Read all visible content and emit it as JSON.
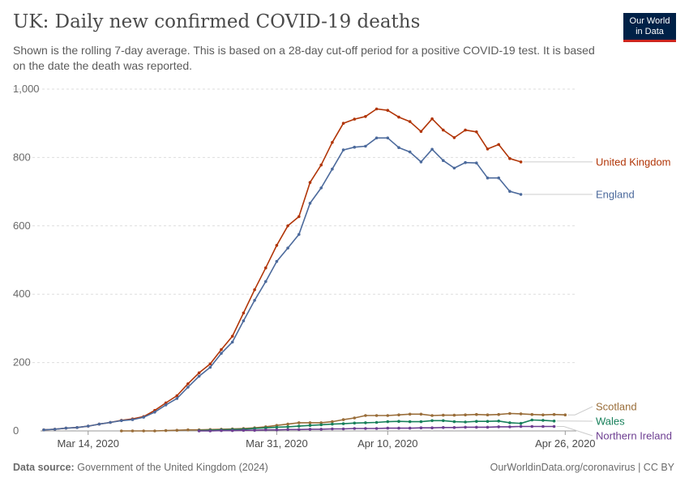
{
  "header": {
    "title": "UK: Daily new confirmed COVID-19 deaths",
    "subtitle": "Shown is the rolling 7-day average. This is based on a 28-day cut-off period for a positive COVID-19 test. It is based on the date the death was reported."
  },
  "logo": {
    "line1": "Our World",
    "line2": "in Data",
    "bg_color": "#002147",
    "accent_color": "#ce261e"
  },
  "footer": {
    "source_label": "Data source:",
    "source_text": "Government of the United Kingdom (2024)",
    "link_text": "OurWorldinData.org/coronavirus | CC BY"
  },
  "chart_data": {
    "type": "line",
    "x_start": "2020-03-10",
    "x_end": "2020-04-27",
    "xlim": [
      "2020-03-10",
      "2020-04-27"
    ],
    "x_ticks": [
      {
        "label": "Mar 14, 2020",
        "date": "2020-03-14"
      },
      {
        "label": "Mar 31, 2020",
        "date": "2020-03-31"
      },
      {
        "label": "Apr 10, 2020",
        "date": "2020-04-10"
      },
      {
        "label": "Apr 26, 2020",
        "date": "2020-04-26"
      }
    ],
    "ylim": [
      0,
      1000
    ],
    "y_ticks": [
      {
        "label": "0",
        "value": 0
      },
      {
        "label": "200",
        "value": 200
      },
      {
        "label": "400",
        "value": 400
      },
      {
        "label": "600",
        "value": 600
      },
      {
        "label": "800",
        "value": 800
      },
      {
        "label": "1,000",
        "value": 1000
      }
    ],
    "grid": "horizontal-dashed",
    "legend": "right",
    "series": [
      {
        "name": "United Kingdom",
        "color": "#b13507",
        "start": "2020-03-10",
        "values": [
          3,
          5,
          8,
          10,
          14,
          20,
          25,
          31,
          35,
          42,
          60,
          82,
          103,
          138,
          170,
          196,
          238,
          277,
          345,
          413,
          477,
          543,
          600,
          627,
          727,
          778,
          844,
          900,
          912,
          920,
          942,
          938,
          918,
          905,
          876,
          913,
          880,
          858,
          880,
          875,
          825,
          838,
          797,
          787
        ]
      },
      {
        "name": "England",
        "color": "#4c6a9c",
        "start": "2020-03-10",
        "values": [
          3,
          5,
          8,
          10,
          14,
          20,
          25,
          30,
          33,
          40,
          55,
          76,
          95,
          128,
          160,
          186,
          227,
          260,
          322,
          382,
          437,
          496,
          535,
          575,
          666,
          711,
          766,
          822,
          830,
          833,
          857,
          857,
          829,
          816,
          787,
          824,
          791,
          769,
          785,
          784,
          740,
          740,
          701,
          692
        ]
      },
      {
        "name": "Scotland",
        "color": "#996d39",
        "start": "2020-03-17",
        "values": [
          0,
          0,
          0,
          0,
          1,
          2,
          3,
          3,
          4,
          5,
          6,
          7,
          9,
          12,
          16,
          20,
          24,
          24,
          24,
          27,
          33,
          38,
          45,
          45,
          45,
          47,
          49,
          49,
          45,
          46,
          46,
          47,
          48,
          47,
          48,
          51,
          50,
          48,
          47,
          48,
          47
        ]
      },
      {
        "name": "Wales",
        "color": "#18805b",
        "start": "2020-03-24",
        "values": [
          1,
          2,
          3,
          4,
          5,
          7,
          9,
          11,
          12,
          14,
          16,
          18,
          20,
          21,
          23,
          24,
          25,
          27,
          28,
          27,
          27,
          30,
          30,
          27,
          26,
          28,
          28,
          29,
          24,
          22,
          32,
          31,
          29
        ]
      },
      {
        "name": "Northern Ireland",
        "color": "#6d3e91",
        "start": "2020-03-24",
        "values": [
          0,
          0,
          1,
          1,
          2,
          2,
          3,
          3,
          4,
          4,
          5,
          5,
          6,
          6,
          7,
          7,
          7,
          8,
          8,
          8,
          9,
          9,
          10,
          10,
          11,
          11,
          11,
          12,
          12,
          13,
          13,
          13,
          13
        ]
      }
    ],
    "label_order": [
      "United Kingdom",
      "England",
      "Scotland",
      "Wales",
      "Northern Ireland"
    ]
  }
}
